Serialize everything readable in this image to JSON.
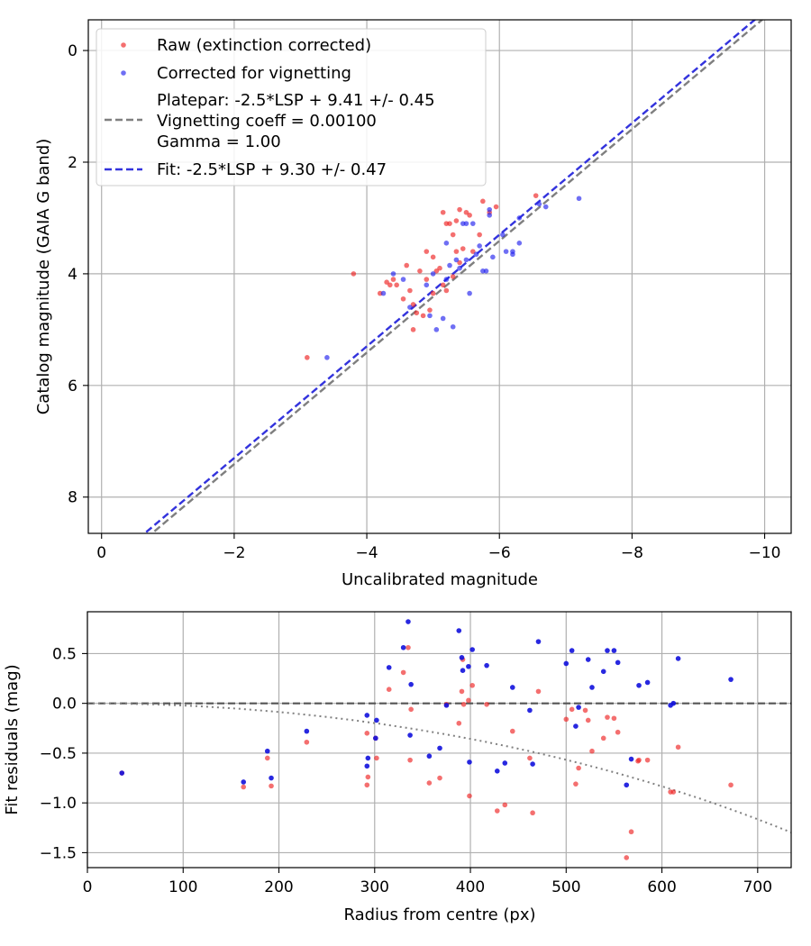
{
  "chart_data": [
    {
      "type": "scatter",
      "xlabel": "Uncalibrated magnitude",
      "ylabel": "Catalog magnitude (GAIA G band)",
      "xlim": [
        0.2,
        -10.4
      ],
      "ylim": [
        8.65,
        -0.55
      ],
      "xticks": [
        0,
        -2,
        -4,
        -6,
        -8,
        -10
      ],
      "xtick_labels": [
        "0",
        "−2",
        "−4",
        "−6",
        "−8",
        "−10"
      ],
      "yticks": [
        0,
        2,
        4,
        6,
        8
      ],
      "ytick_labels": [
        "0",
        "2",
        "4",
        "6",
        "8"
      ],
      "grid": true,
      "legend_position": "top-left",
      "legend": {
        "raw": "Raw (extinction corrected)",
        "corrected": "Corrected for vignetting",
        "platepar": [
          "Platepar: -2.5*LSP + 9.41 +/- 0.45",
          "Vignetting coeff = 0.00100",
          "Gamma = 1.00"
        ],
        "fit": "Fit: -2.5*LSP + 9.30 +/- 0.47"
      },
      "lines": [
        {
          "name": "Platepar",
          "intercept": 9.41,
          "color": "#7f7f7f",
          "style": "dashed"
        },
        {
          "name": "Fit",
          "intercept": 9.3,
          "color": "#3333dd",
          "style": "dashed"
        }
      ],
      "series": [
        {
          "name": "Raw (extinction corrected)",
          "color": "#ee2222",
          "points": [
            [
              -3.1,
              5.5
            ],
            [
              -3.8,
              4.0
            ],
            [
              -4.2,
              4.35
            ],
            [
              -4.3,
              4.15
            ],
            [
              -4.35,
              4.2
            ],
            [
              -4.4,
              4.1
            ],
            [
              -4.45,
              4.2
            ],
            [
              -4.55,
              4.45
            ],
            [
              -4.6,
              3.85
            ],
            [
              -4.65,
              4.3
            ],
            [
              -4.7,
              4.55
            ],
            [
              -4.75,
              4.7
            ],
            [
              -4.7,
              5.0
            ],
            [
              -4.8,
              3.95
            ],
            [
              -4.85,
              4.75
            ],
            [
              -4.9,
              3.6
            ],
            [
              -4.95,
              4.65
            ],
            [
              -5.0,
              4.35
            ],
            [
              -5.05,
              3.95
            ],
            [
              -5.1,
              3.9
            ],
            [
              -5.15,
              4.2
            ],
            [
              -5.15,
              2.9
            ],
            [
              -5.2,
              3.1
            ],
            [
              -5.25,
              3.1
            ],
            [
              -5.3,
              3.3
            ],
            [
              -5.35,
              3.6
            ],
            [
              -5.4,
              3.8
            ],
            [
              -5.45,
              3.55
            ],
            [
              -5.5,
              2.9
            ],
            [
              -5.55,
              2.95
            ],
            [
              -5.6,
              3.6
            ],
            [
              -5.7,
              3.3
            ],
            [
              -5.75,
              2.7
            ],
            [
              -5.85,
              2.9
            ],
            [
              -5.95,
              2.8
            ],
            [
              -6.55,
              2.6
            ],
            [
              -5.3,
              4.05
            ],
            [
              -5.0,
              3.7
            ],
            [
              -5.2,
              4.3
            ],
            [
              -5.35,
              3.05
            ],
            [
              -5.4,
              2.85
            ],
            [
              -4.9,
              4.1
            ]
          ]
        },
        {
          "name": "Corrected for vignetting",
          "color": "#2222ee",
          "points": [
            [
              -3.4,
              5.5
            ],
            [
              -4.25,
              4.35
            ],
            [
              -4.4,
              4.0
            ],
            [
              -4.55,
              4.1
            ],
            [
              -4.65,
              4.6
            ],
            [
              -4.9,
              4.2
            ],
            [
              -4.95,
              4.75
            ],
            [
              -5.05,
              5.0
            ],
            [
              -5.15,
              4.8
            ],
            [
              -5.2,
              4.1
            ],
            [
              -5.25,
              3.85
            ],
            [
              -5.3,
              4.95
            ],
            [
              -5.35,
              3.75
            ],
            [
              -5.4,
              3.9
            ],
            [
              -5.45,
              3.1
            ],
            [
              -5.5,
              3.1
            ],
            [
              -5.55,
              4.35
            ],
            [
              -5.6,
              3.1
            ],
            [
              -5.65,
              3.65
            ],
            [
              -5.7,
              3.5
            ],
            [
              -5.75,
              3.95
            ],
            [
              -5.8,
              3.95
            ],
            [
              -5.85,
              2.85
            ],
            [
              -5.9,
              3.7
            ],
            [
              -6.05,
              3.3
            ],
            [
              -6.1,
              3.6
            ],
            [
              -6.2,
              3.65
            ],
            [
              -6.3,
              3.0
            ],
            [
              -6.6,
              2.75
            ],
            [
              -6.7,
              2.8
            ],
            [
              -7.2,
              2.65
            ],
            [
              -5.85,
              2.95
            ],
            [
              -6.3,
              3.45
            ],
            [
              -6.2,
              3.6
            ],
            [
              -5.2,
              3.45
            ],
            [
              -5.5,
              3.75
            ],
            [
              -5.0,
              4.0
            ]
          ]
        }
      ]
    },
    {
      "type": "scatter",
      "xlabel": "Radius from centre (px)",
      "ylabel": "Fit residuals (mag)",
      "xlim": [
        0,
        735
      ],
      "ylim": [
        -1.65,
        0.92
      ],
      "xticks": [
        0,
        100,
        200,
        300,
        400,
        500,
        600,
        700
      ],
      "xtick_labels": [
        "0",
        "100",
        "200",
        "300",
        "400",
        "500",
        "600",
        "700"
      ],
      "yticks": [
        0.5,
        0.0,
        -0.5,
        -1.0,
        -1.5
      ],
      "ytick_labels": [
        "0.5",
        "0.0",
        "−0.5",
        "−1.0",
        "−1.5"
      ],
      "grid": true,
      "zero_line": 0.0,
      "vignetting_coeff": 0.001,
      "series": [
        {
          "name": "Raw",
          "color": "#ee2222",
          "points": [
            [
              36,
              -0.7
            ],
            [
              163,
              -0.84
            ],
            [
              188,
              -0.55
            ],
            [
              192,
              -0.83
            ],
            [
              229,
              -0.39
            ],
            [
              292,
              -0.3
            ],
            [
              293,
              -0.74
            ],
            [
              292,
              -0.82
            ],
            [
              301,
              -0.35
            ],
            [
              302,
              -0.55
            ],
            [
              315,
              0.14
            ],
            [
              330,
              0.31
            ],
            [
              335,
              0.56
            ],
            [
              337,
              -0.57
            ],
            [
              338,
              -0.06
            ],
            [
              357,
              -0.8
            ],
            [
              368,
              -0.75
            ],
            [
              375,
              -0.01
            ],
            [
              388,
              -0.2
            ],
            [
              391,
              0.12
            ],
            [
              392,
              0.44
            ],
            [
              393,
              -0.01
            ],
            [
              398,
              0.03
            ],
            [
              399,
              -0.93
            ],
            [
              402,
              0.18
            ],
            [
              417,
              -0.01
            ],
            [
              428,
              -1.08
            ],
            [
              436,
              -1.02
            ],
            [
              444,
              -0.28
            ],
            [
              462,
              -0.55
            ],
            [
              465,
              -1.1
            ],
            [
              471,
              0.12
            ],
            [
              500,
              -0.16
            ],
            [
              506,
              -0.06
            ],
            [
              510,
              -0.81
            ],
            [
              513,
              -0.65
            ],
            [
              520,
              -0.07
            ],
            [
              523,
              -0.17
            ],
            [
              527,
              -0.48
            ],
            [
              539,
              -0.35
            ],
            [
              543,
              -0.14
            ],
            [
              550,
              -0.15
            ],
            [
              554,
              -0.29
            ],
            [
              563,
              -1.55
            ],
            [
              568,
              -1.29
            ],
            [
              576,
              -0.57
            ],
            [
              585,
              -0.57
            ],
            [
              609,
              -0.89
            ],
            [
              612,
              -0.89
            ],
            [
              617,
              -0.44
            ],
            [
              672,
              -0.82
            ],
            [
              575,
              -0.58
            ]
          ]
        },
        {
          "name": "Corrected",
          "color": "#1111dd",
          "points": [
            [
              36,
              -0.7
            ],
            [
              163,
              -0.79
            ],
            [
              188,
              -0.48
            ],
            [
              192,
              -0.75
            ],
            [
              229,
              -0.28
            ],
            [
              292,
              -0.12
            ],
            [
              293,
              -0.55
            ],
            [
              292,
              -0.63
            ],
            [
              301,
              -0.35
            ],
            [
              302,
              -0.17
            ],
            [
              315,
              0.36
            ],
            [
              330,
              0.56
            ],
            [
              335,
              0.82
            ],
            [
              337,
              -0.32
            ],
            [
              338,
              0.19
            ],
            [
              357,
              -0.53
            ],
            [
              368,
              -0.45
            ],
            [
              375,
              -0.02
            ],
            [
              388,
              0.73
            ],
            [
              391,
              0.46
            ],
            [
              392,
              0.33
            ],
            [
              398,
              0.37
            ],
            [
              399,
              -0.59
            ],
            [
              402,
              0.54
            ],
            [
              417,
              0.38
            ],
            [
              428,
              -0.68
            ],
            [
              436,
              -0.6
            ],
            [
              444,
              0.16
            ],
            [
              462,
              -0.07
            ],
            [
              465,
              -0.61
            ],
            [
              471,
              0.62
            ],
            [
              500,
              0.4
            ],
            [
              506,
              0.53
            ],
            [
              510,
              -0.23
            ],
            [
              513,
              -0.04
            ],
            [
              523,
              0.44
            ],
            [
              527,
              0.16
            ],
            [
              539,
              0.32
            ],
            [
              543,
              0.53
            ],
            [
              550,
              0.53
            ],
            [
              554,
              0.41
            ],
            [
              563,
              -0.82
            ],
            [
              568,
              -0.56
            ],
            [
              576,
              0.18
            ],
            [
              585,
              0.21
            ],
            [
              609,
              -0.02
            ],
            [
              612,
              0.0
            ],
            [
              617,
              0.45
            ],
            [
              672,
              0.24
            ]
          ]
        }
      ]
    }
  ]
}
